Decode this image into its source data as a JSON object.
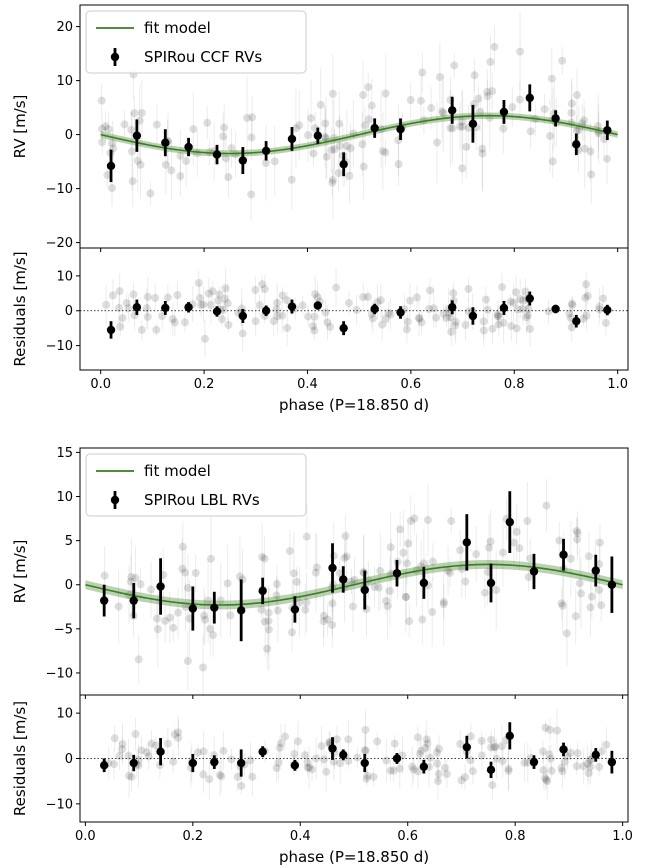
{
  "chart_data": [
    {
      "type": "scatter",
      "panel": "rv",
      "ylabel": "RV [m/s]",
      "xlabel": "",
      "xlim": [
        -0.04,
        1.02
      ],
      "ylim": [
        -21,
        24
      ],
      "yticks": [
        -20,
        -10,
        0,
        10,
        20
      ],
      "xticks": [
        0.0,
        0.2,
        0.4,
        0.6,
        0.8,
        1.0
      ],
      "show_xticklabels": false,
      "legend_position": "top-left",
      "model": {
        "name": "fit model",
        "amplitude": 3.5,
        "phase_min": 0.25,
        "band": 0.6,
        "color": "#3a7d22"
      },
      "series": [
        {
          "name": "SPIRou CCF RVs",
          "points": [
            {
              "x": 0.02,
              "y": -5.8,
              "err": 3.0
            },
            {
              "x": 0.07,
              "y": -0.2,
              "err": 3.0
            },
            {
              "x": 0.125,
              "y": -1.5,
              "err": 2.5
            },
            {
              "x": 0.17,
              "y": -2.3,
              "err": 1.7
            },
            {
              "x": 0.225,
              "y": -3.7,
              "err": 1.8
            },
            {
              "x": 0.275,
              "y": -4.8,
              "err": 2.5
            },
            {
              "x": 0.32,
              "y": -3.0,
              "err": 1.8
            },
            {
              "x": 0.37,
              "y": -0.8,
              "err": 2.2
            },
            {
              "x": 0.42,
              "y": -0.2,
              "err": 1.5
            },
            {
              "x": 0.47,
              "y": -5.5,
              "err": 2.2
            },
            {
              "x": 0.53,
              "y": 1.2,
              "err": 1.8
            },
            {
              "x": 0.58,
              "y": 1.0,
              "err": 2.0
            },
            {
              "x": 0.68,
              "y": 4.5,
              "err": 2.5
            },
            {
              "x": 0.72,
              "y": 2.0,
              "err": 3.5
            },
            {
              "x": 0.78,
              "y": 4.2,
              "err": 2.2
            },
            {
              "x": 0.83,
              "y": 6.8,
              "err": 2.5
            },
            {
              "x": 0.88,
              "y": 3.0,
              "err": 1.5
            },
            {
              "x": 0.92,
              "y": -1.8,
              "err": 2.0
            },
            {
              "x": 0.98,
              "y": 0.8,
              "err": 1.8
            }
          ]
        }
      ]
    },
    {
      "type": "scatter",
      "panel": "residuals",
      "ylabel": "Residuals [m/s]",
      "xlabel": "phase (P=18.850 d)",
      "xlim": [
        -0.04,
        1.02
      ],
      "ylim": [
        -17,
        18
      ],
      "yticks": [
        -10,
        0,
        10
      ],
      "xticks": [
        0.0,
        0.2,
        0.4,
        0.6,
        0.8,
        1.0
      ],
      "xticklabels": [
        "0.0",
        "0.2",
        "0.4",
        "0.6",
        "0.8",
        "1.0"
      ],
      "reference_line": 0,
      "series": [
        {
          "name": "",
          "points": [
            {
              "x": 0.02,
              "y": -5.5,
              "err": 2.5
            },
            {
              "x": 0.07,
              "y": 1.0,
              "err": 2.2
            },
            {
              "x": 0.125,
              "y": 0.8,
              "err": 2.0
            },
            {
              "x": 0.17,
              "y": 1.0,
              "err": 1.5
            },
            {
              "x": 0.225,
              "y": -0.2,
              "err": 1.5
            },
            {
              "x": 0.275,
              "y": -1.5,
              "err": 2.0
            },
            {
              "x": 0.32,
              "y": 0.0,
              "err": 1.5
            },
            {
              "x": 0.37,
              "y": 1.2,
              "err": 2.0
            },
            {
              "x": 0.42,
              "y": 1.5,
              "err": 1.2
            },
            {
              "x": 0.47,
              "y": -5.0,
              "err": 2.0
            },
            {
              "x": 0.53,
              "y": 0.5,
              "err": 1.5
            },
            {
              "x": 0.58,
              "y": -0.5,
              "err": 1.8
            },
            {
              "x": 0.68,
              "y": 1.0,
              "err": 2.0
            },
            {
              "x": 0.72,
              "y": -1.5,
              "err": 2.5
            },
            {
              "x": 0.78,
              "y": 0.8,
              "err": 2.0
            },
            {
              "x": 0.83,
              "y": 3.5,
              "err": 2.0
            },
            {
              "x": 0.88,
              "y": 0.5,
              "err": 1.2
            },
            {
              "x": 0.92,
              "y": -3.0,
              "err": 1.8
            },
            {
              "x": 0.98,
              "y": 0.2,
              "err": 1.5
            }
          ]
        }
      ]
    },
    {
      "type": "scatter",
      "panel": "rv",
      "ylabel": "RV [m/s]",
      "xlabel": "",
      "xlim": [
        -0.01,
        1.01
      ],
      "ylim": [
        -12.5,
        15.5
      ],
      "yticks": [
        -10,
        -5,
        0,
        5,
        10,
        15
      ],
      "xticks": [
        0.0,
        0.2,
        0.4,
        0.6,
        0.8,
        1.0
      ],
      "show_xticklabels": false,
      "legend_position": "top-left",
      "model": {
        "name": "fit model",
        "amplitude": 2.3,
        "phase_min": 0.25,
        "band": 0.5,
        "color": "#3a7d22"
      },
      "series": [
        {
          "name": "SPIRou LBL RVs",
          "points": [
            {
              "x": 0.035,
              "y": -1.8,
              "err": 1.8
            },
            {
              "x": 0.09,
              "y": -1.8,
              "err": 2.0
            },
            {
              "x": 0.14,
              "y": -0.2,
              "err": 3.2
            },
            {
              "x": 0.2,
              "y": -2.7,
              "err": 2.5
            },
            {
              "x": 0.24,
              "y": -2.6,
              "err": 1.8
            },
            {
              "x": 0.29,
              "y": -2.9,
              "err": 3.5
            },
            {
              "x": 0.33,
              "y": -0.7,
              "err": 1.5
            },
            {
              "x": 0.39,
              "y": -2.8,
              "err": 1.5
            },
            {
              "x": 0.46,
              "y": 1.9,
              "err": 2.8
            },
            {
              "x": 0.48,
              "y": 0.6,
              "err": 1.5
            },
            {
              "x": 0.52,
              "y": -0.6,
              "err": 2.2
            },
            {
              "x": 0.58,
              "y": 1.3,
              "err": 1.5
            },
            {
              "x": 0.63,
              "y": 0.2,
              "err": 1.8
            },
            {
              "x": 0.71,
              "y": 4.8,
              "err": 3.2
            },
            {
              "x": 0.755,
              "y": 0.2,
              "err": 2.2
            },
            {
              "x": 0.79,
              "y": 7.1,
              "err": 3.5
            },
            {
              "x": 0.835,
              "y": 1.5,
              "err": 2.0
            },
            {
              "x": 0.89,
              "y": 3.4,
              "err": 1.8
            },
            {
              "x": 0.95,
              "y": 1.6,
              "err": 1.8
            },
            {
              "x": 0.98,
              "y": 0.0,
              "err": 3.2
            }
          ]
        }
      ]
    },
    {
      "type": "scatter",
      "panel": "residuals",
      "ylabel": "Residuals [m/s]",
      "xlabel": "phase (P=18.850 d)",
      "xlim": [
        -0.01,
        1.01
      ],
      "ylim": [
        -14,
        14
      ],
      "yticks": [
        -10,
        0,
        10
      ],
      "xticks": [
        0.0,
        0.2,
        0.4,
        0.6,
        0.8,
        1.0
      ],
      "xticklabels": [
        "0.0",
        "0.2",
        "0.4",
        "0.6",
        "0.8",
        "1.0"
      ],
      "reference_line": 0,
      "series": [
        {
          "name": "",
          "points": [
            {
              "x": 0.035,
              "y": -1.5,
              "err": 1.5
            },
            {
              "x": 0.09,
              "y": -1.0,
              "err": 1.8
            },
            {
              "x": 0.14,
              "y": 1.5,
              "err": 3.0
            },
            {
              "x": 0.2,
              "y": -1.0,
              "err": 2.0
            },
            {
              "x": 0.24,
              "y": -0.8,
              "err": 1.5
            },
            {
              "x": 0.29,
              "y": -1.0,
              "err": 3.0
            },
            {
              "x": 0.33,
              "y": 1.5,
              "err": 1.2
            },
            {
              "x": 0.39,
              "y": -1.5,
              "err": 1.2
            },
            {
              "x": 0.46,
              "y": 2.2,
              "err": 2.5
            },
            {
              "x": 0.48,
              "y": 0.8,
              "err": 1.2
            },
            {
              "x": 0.52,
              "y": -1.0,
              "err": 2.0
            },
            {
              "x": 0.58,
              "y": 0.0,
              "err": 1.2
            },
            {
              "x": 0.63,
              "y": -1.8,
              "err": 1.5
            },
            {
              "x": 0.71,
              "y": 2.5,
              "err": 2.5
            },
            {
              "x": 0.755,
              "y": -2.5,
              "err": 1.8
            },
            {
              "x": 0.79,
              "y": 5.0,
              "err": 3.0
            },
            {
              "x": 0.835,
              "y": -0.8,
              "err": 1.5
            },
            {
              "x": 0.89,
              "y": 2.0,
              "err": 1.5
            },
            {
              "x": 0.95,
              "y": 0.8,
              "err": 1.5
            },
            {
              "x": 0.98,
              "y": -0.8,
              "err": 2.5
            }
          ]
        }
      ]
    }
  ]
}
